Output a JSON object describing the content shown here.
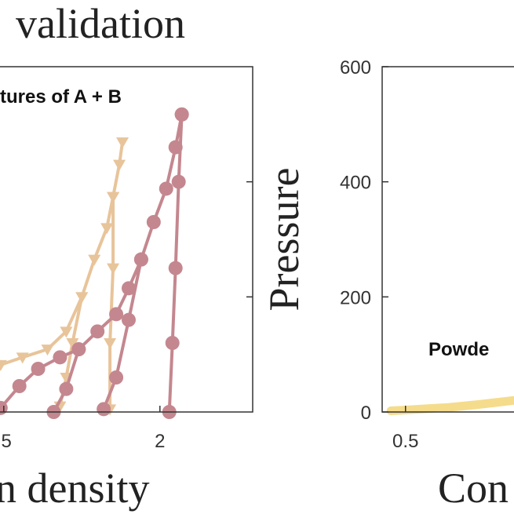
{
  "chart_data": [
    {
      "type": "line",
      "title": "validation",
      "annotation": "tures of A + B",
      "x_label": "n density",
      "xlim": [
        1.4,
        2.297
      ],
      "ylim": [
        0,
        600
      ],
      "xticks": [
        {
          "value": 1.5,
          "label": ".5"
        },
        2
      ],
      "yticks": [
        200,
        400
      ],
      "series": [
        {
          "color": "#e8c49a",
          "marker": "triangle",
          "x": [
            1.49,
            1.56,
            1.64,
            1.7,
            1.75,
            1.79,
            1.83,
            1.85,
            1.87,
            1.88,
            null,
            1.85,
            1.85,
            1.84,
            1.84,
            null,
            1.75,
            1.72,
            1.7,
            1.68
          ],
          "values": [
            82,
            95,
            109,
            140,
            200,
            265,
            320,
            374,
            430,
            469,
            null,
            374,
            250,
            120,
            5,
            null,
            200,
            120,
            60,
            10
          ]
        },
        {
          "color": "#c4878f",
          "marker": "circle",
          "x": [
            1.49,
            1.55,
            1.61,
            1.68,
            1.74,
            1.8,
            1.86,
            1.9,
            1.94,
            1.98,
            2.02,
            2.05,
            2.07,
            null,
            2.07,
            2.06,
            2.05,
            2.04,
            2.03,
            null,
            1.94,
            1.9,
            1.86,
            1.82,
            null,
            1.74,
            1.7,
            1.66
          ],
          "values": [
            7,
            45,
            75,
            95,
            109,
            140,
            170,
            215,
            265,
            330,
            388,
            460,
            517,
            null,
            517,
            400,
            250,
            120,
            0,
            null,
            265,
            160,
            60,
            5,
            null,
            109,
            40,
            0
          ]
        }
      ]
    },
    {
      "type": "line",
      "annotation": "Powde",
      "x_label": "Con",
      "y_label": "Pressure",
      "xlim": [
        0.42,
        1.8
      ],
      "ylim": [
        0,
        600
      ],
      "xticks": [
        0.5
      ],
      "yticks": [
        0,
        200,
        400,
        600
      ],
      "series": [
        {
          "color": "#f5dc8c",
          "marker": "none",
          "x": [
            0.45,
            0.55,
            0.65,
            0.75,
            0.87
          ],
          "values": [
            2,
            5,
            8,
            13,
            20
          ]
        }
      ]
    }
  ]
}
